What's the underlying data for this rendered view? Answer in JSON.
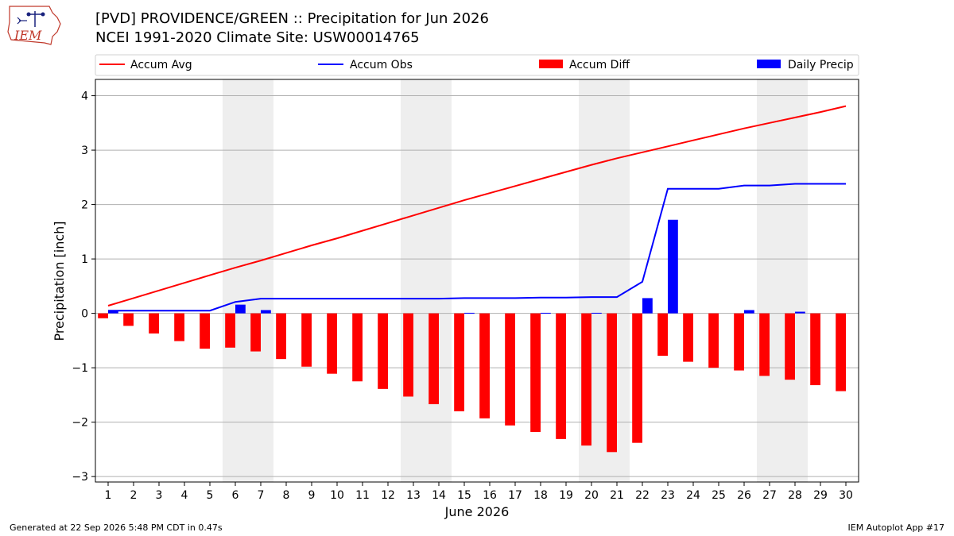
{
  "header": {
    "title_line1": "[PVD] PROVIDENCE/GREEN :: Precipitation for Jun 2026",
    "title_line2": "NCEI 1991-2020 Climate Site: USW00014765",
    "logo_text": "IEM"
  },
  "footer": {
    "generated": "Generated at 22 Sep 2026 5:48 PM CDT in 0.47s",
    "app": "IEM Autoplot App #17"
  },
  "colors": {
    "accum_avg": "#ff0000",
    "accum_obs": "#0000ff",
    "accum_diff": "#ff0000",
    "daily_precip": "#0000ff",
    "weekend_band": "#eeeeee",
    "grid": "#b0b0b0",
    "logo": "#c0392b"
  },
  "chart_data": {
    "type": "bar",
    "title": "[PVD] PROVIDENCE/GREEN :: Precipitation for Jun 2026",
    "xlabel": "June 2026",
    "ylabel": "Precipitation [inch]",
    "ylim": [
      -3.1,
      4.3
    ],
    "xlim": [
      0.5,
      30.5
    ],
    "yticks": [
      -3,
      -2,
      -1,
      0,
      1,
      2,
      3,
      4
    ],
    "ytick_labels": [
      "−3",
      "−2",
      "−1",
      "0",
      "1",
      "2",
      "3",
      "4"
    ],
    "grid": "y",
    "legend_position": "top",
    "x": [
      1,
      2,
      3,
      4,
      5,
      6,
      7,
      8,
      9,
      10,
      11,
      12,
      13,
      14,
      15,
      16,
      17,
      18,
      19,
      20,
      21,
      22,
      23,
      24,
      25,
      26,
      27,
      28,
      29,
      30
    ],
    "weekend_ranges": [
      [
        5.5,
        7.5
      ],
      [
        12.5,
        14.5
      ],
      [
        19.5,
        21.5
      ],
      [
        26.5,
        28.5
      ]
    ],
    "series": [
      {
        "name": "Accum Avg",
        "kind": "line",
        "values": [
          0.14,
          0.28,
          0.42,
          0.56,
          0.7,
          0.84,
          0.97,
          1.11,
          1.25,
          1.38,
          1.52,
          1.66,
          1.8,
          1.94,
          2.08,
          2.21,
          2.34,
          2.47,
          2.6,
          2.73,
          2.85,
          2.96,
          3.07,
          3.18,
          3.29,
          3.4,
          3.5,
          3.6,
          3.7,
          3.81
        ]
      },
      {
        "name": "Accum Obs",
        "kind": "line",
        "values": [
          0.05,
          0.05,
          0.05,
          0.05,
          0.05,
          0.21,
          0.27,
          0.27,
          0.27,
          0.27,
          0.27,
          0.27,
          0.27,
          0.27,
          0.28,
          0.28,
          0.28,
          0.29,
          0.29,
          0.3,
          0.3,
          0.58,
          2.29,
          2.29,
          2.29,
          2.35,
          2.35,
          2.38,
          2.38,
          2.38
        ]
      },
      {
        "name": "Accum Diff",
        "kind": "bar",
        "values": [
          -0.09,
          -0.23,
          -0.37,
          -0.51,
          -0.65,
          -0.63,
          -0.7,
          -0.84,
          -0.98,
          -1.11,
          -1.25,
          -1.39,
          -1.53,
          -1.67,
          -1.8,
          -1.93,
          -2.06,
          -2.18,
          -2.31,
          -2.43,
          -2.55,
          -2.38,
          -0.78,
          -0.89,
          -1.0,
          -1.05,
          -1.15,
          -1.22,
          -1.32,
          -1.43
        ]
      },
      {
        "name": "Daily Precip",
        "kind": "bar",
        "values": [
          0.05,
          0,
          0,
          0,
          0,
          0.16,
          0.06,
          0,
          0,
          0,
          0,
          0,
          0,
          0,
          0.01,
          0,
          0,
          0.01,
          0,
          0.01,
          0,
          0.28,
          1.72,
          0,
          0,
          0.06,
          0,
          0.03,
          0,
          0
        ]
      }
    ]
  }
}
